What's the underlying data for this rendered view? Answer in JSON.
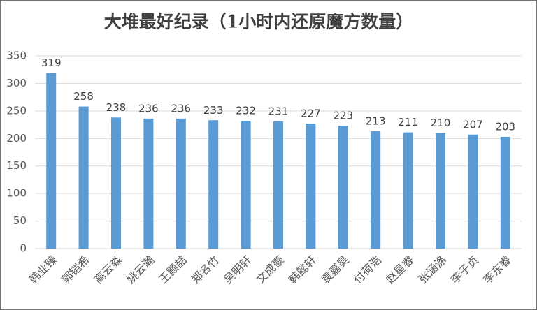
{
  "chart_data": {
    "type": "bar",
    "title": "大堆最好纪录（1小时内还原魔方数量）",
    "categories": [
      "韩业臻",
      "郭铠希",
      "高云淼",
      "姚云瀚",
      "王颢喆",
      "郑名竹",
      "吴明轩",
      "文成豪",
      "韩懿轩",
      "袁嘉昊",
      "付荷浩",
      "赵星睿",
      "张涵涤",
      "李子贞",
      "李东睿"
    ],
    "values": [
      319,
      258,
      238,
      236,
      236,
      233,
      232,
      231,
      227,
      223,
      213,
      211,
      210,
      207,
      203
    ],
    "color": "#5b9bd5",
    "ylim": [
      0,
      350
    ],
    "yticks": [
      0,
      50,
      100,
      150,
      200,
      250,
      300,
      350
    ],
    "grid": true
  }
}
